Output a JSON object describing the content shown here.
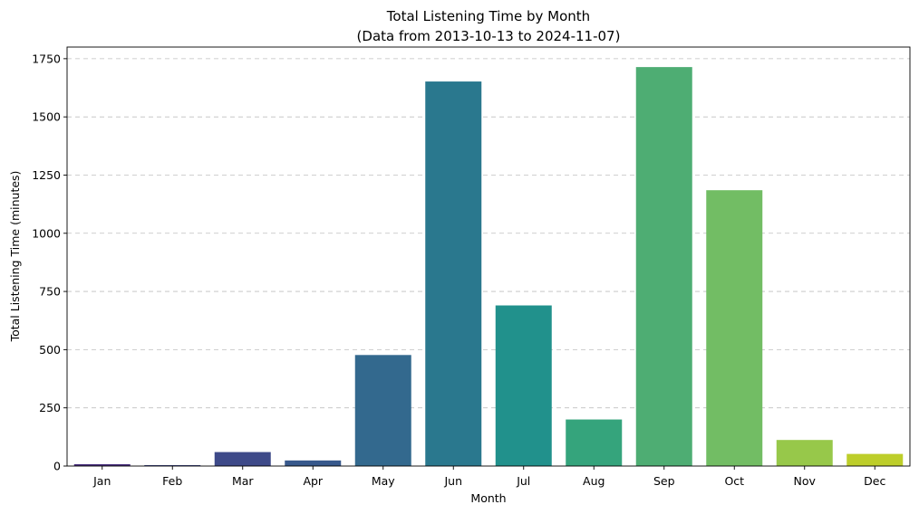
{
  "chart_data": {
    "type": "bar",
    "title": "Total Listening Time by Month",
    "subtitle": "(Data from 2013-10-13 to 2024-11-07)",
    "xlabel": "Month",
    "ylabel": "Total Listening Time (minutes)",
    "categories": [
      "Jan",
      "Feb",
      "Mar",
      "Apr",
      "May",
      "Jun",
      "Jul",
      "Aug",
      "Sep",
      "Oct",
      "Nov",
      "Dec"
    ],
    "values": [
      8,
      4,
      60,
      24,
      477,
      1652,
      690,
      200,
      1714,
      1185,
      112,
      52
    ],
    "colors": [
      "#472d7b",
      "#3e4989",
      "#3e4a89",
      "#38598c",
      "#33698e",
      "#2a788e",
      "#21918c",
      "#35a47c",
      "#4ead73",
      "#72bd64",
      "#97c84a",
      "#bdce2a"
    ],
    "ylim": [
      0,
      1800
    ],
    "yticks": [
      0,
      250,
      500,
      750,
      1000,
      1250,
      1500,
      1750
    ],
    "grid": "horizontal dashed"
  }
}
